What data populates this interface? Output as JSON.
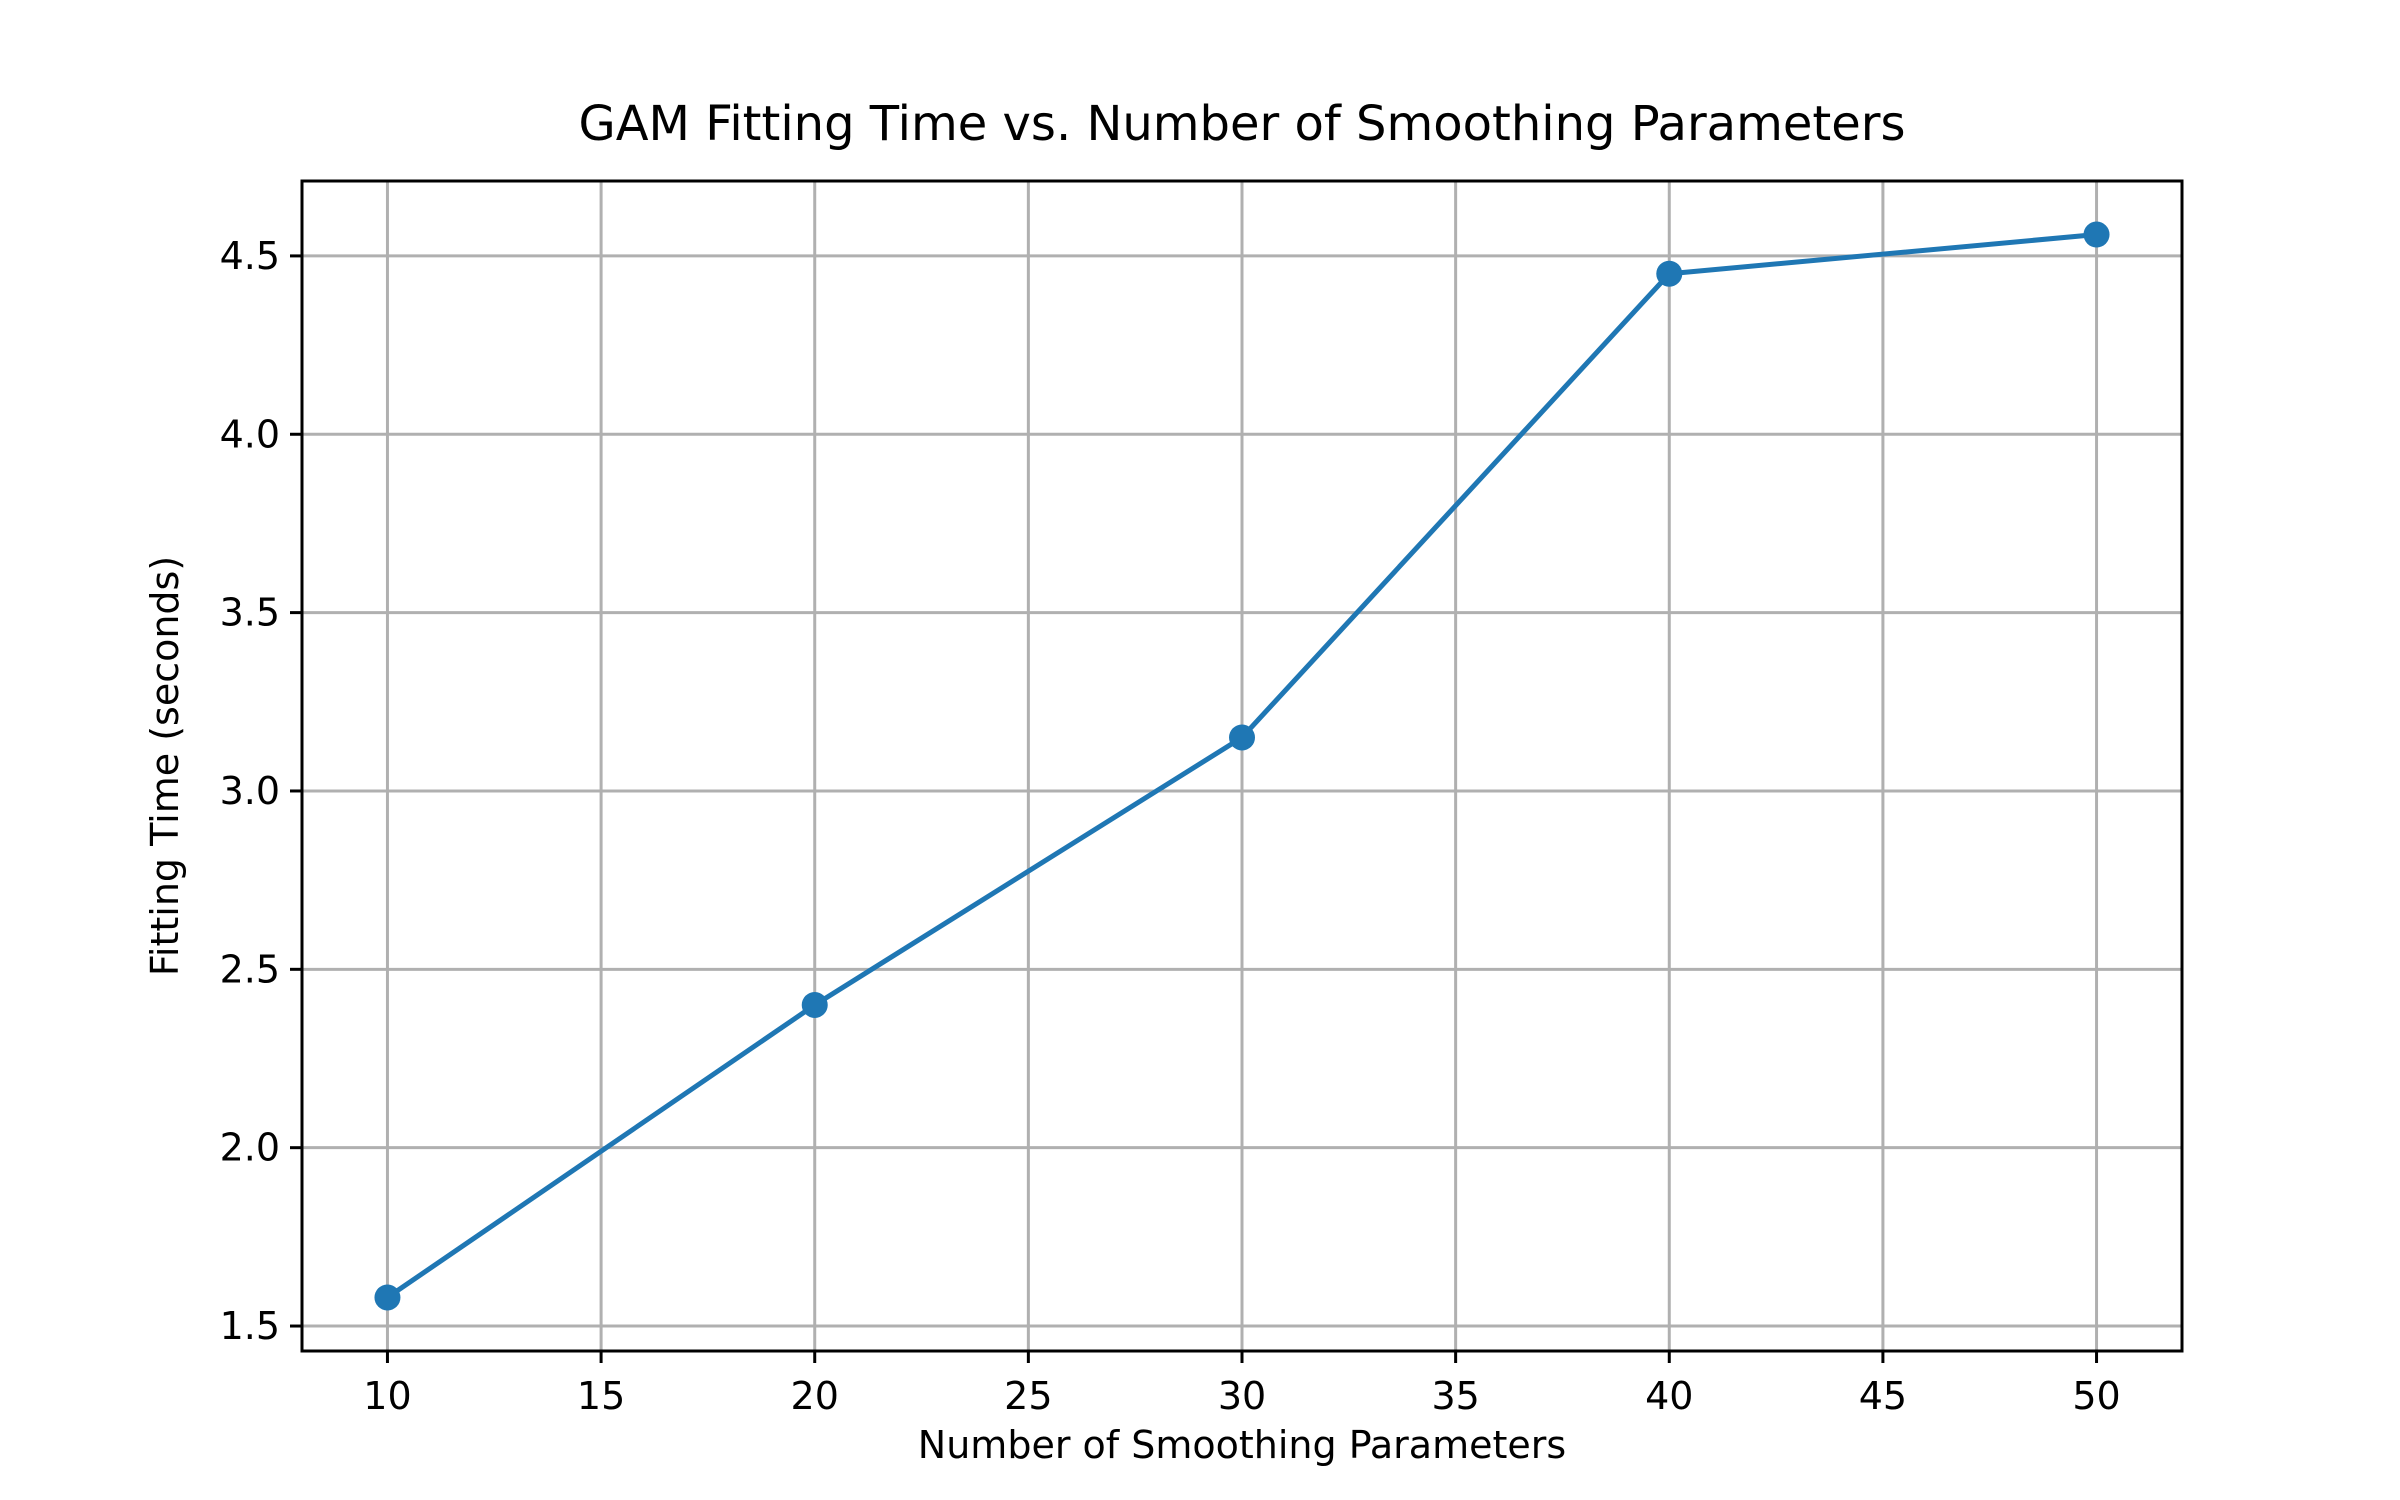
{
  "chart_data": {
    "type": "line",
    "title": "GAM Fitting Time vs. Number of Smoothing Parameters",
    "xlabel": "Number of Smoothing Parameters",
    "ylabel": "Fitting Time (seconds)",
    "xlim": [
      8,
      52
    ],
    "ylim": [
      1.43,
      4.71
    ],
    "xticks": [
      10,
      15,
      20,
      25,
      30,
      35,
      40,
      45,
      50
    ],
    "xtick_labels": [
      "10",
      "15",
      "20",
      "25",
      "30",
      "35",
      "40",
      "45",
      "50"
    ],
    "yticks": [
      1.5,
      2.0,
      2.5,
      3.0,
      3.5,
      4.0,
      4.5
    ],
    "ytick_labels": [
      "1.5",
      "2.0",
      "2.5",
      "3.0",
      "3.5",
      "4.0",
      "4.5"
    ],
    "grid": true,
    "series": [
      {
        "x": [
          10,
          20,
          30,
          40,
          50
        ],
        "values": [
          1.58,
          2.4,
          3.15,
          4.45,
          4.56
        ],
        "color": "#1f77b4",
        "marker": "circle"
      }
    ]
  }
}
